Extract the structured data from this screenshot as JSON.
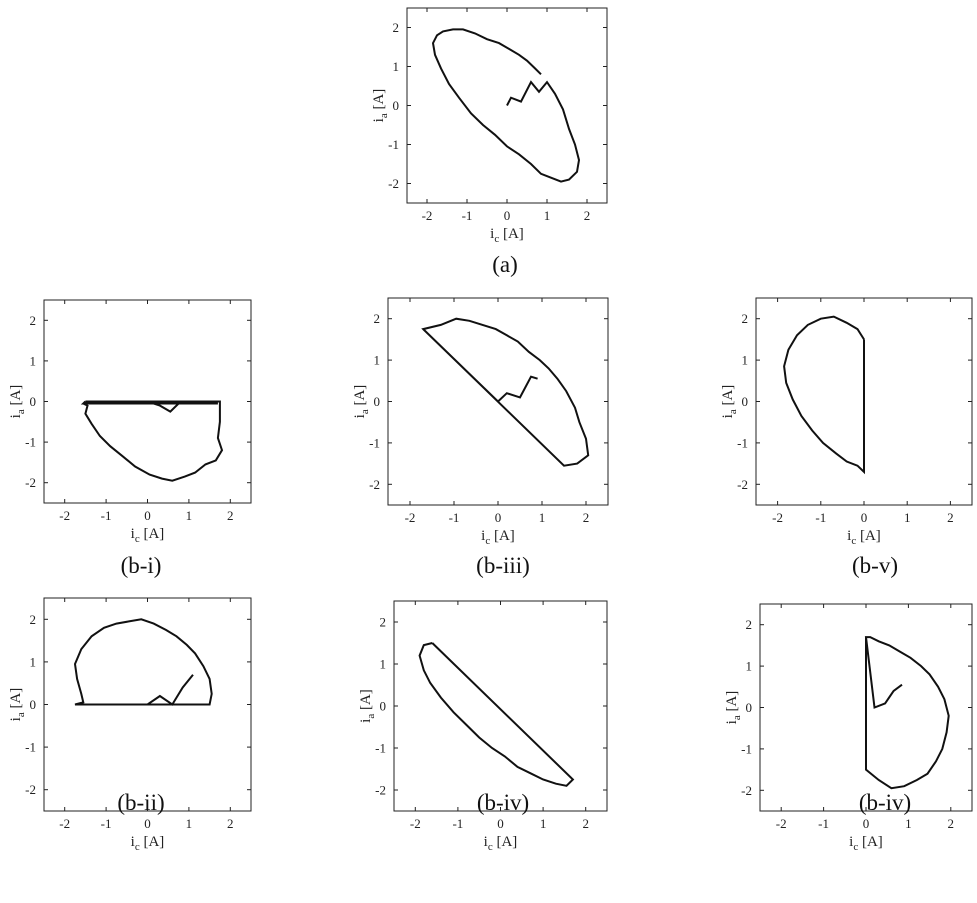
{
  "figure": {
    "chart_data": [
      {
        "type": "line",
        "caption": "(a)",
        "xlabel": "i",
        "xlabel_sub": "c",
        "xlabel_unit": "[A]",
        "ylabel": "i",
        "ylabel_sub": "a",
        "ylabel_unit": "[A]",
        "xlim": [
          -2.5,
          2.5
        ],
        "ylim": [
          -2.5,
          2.5
        ],
        "xticks": [
          "-2",
          "-1",
          "0",
          "1",
          "2"
        ],
        "yticks": [
          "-2",
          "-1",
          "0",
          "1",
          "2"
        ],
        "series": [
          {
            "color": "#111111",
            "x": [
              0.0,
              0.1,
              0.35,
              0.6,
              0.8,
              1.0,
              1.2,
              1.4,
              1.55,
              1.7,
              1.8,
              1.75,
              1.55,
              1.35,
              1.1,
              0.85,
              0.6,
              0.3,
              0.0,
              -0.3,
              -0.6,
              -0.9,
              -1.2,
              -1.45,
              -1.65,
              -1.8,
              -1.85,
              -1.75,
              -1.6,
              -1.35,
              -1.1,
              -0.8,
              -0.5,
              -0.2,
              0.05,
              0.3,
              0.5,
              0.7,
              0.85
            ],
            "y": [
              0.0,
              0.2,
              0.1,
              0.6,
              0.35,
              0.6,
              0.3,
              -0.1,
              -0.6,
              -1.0,
              -1.4,
              -1.7,
              -1.9,
              -1.95,
              -1.85,
              -1.75,
              -1.5,
              -1.25,
              -1.05,
              -0.75,
              -0.5,
              -0.2,
              0.2,
              0.55,
              0.95,
              1.3,
              1.6,
              1.8,
              1.9,
              1.95,
              1.95,
              1.85,
              1.7,
              1.6,
              1.45,
              1.3,
              1.15,
              0.95,
              0.8
            ]
          }
        ]
      },
      {
        "type": "line",
        "caption": "(b-i)",
        "xlabel": "i",
        "xlabel_sub": "c",
        "xlabel_unit": "[A]",
        "ylabel": "i",
        "ylabel_sub": "a",
        "ylabel_unit": "[A]",
        "xlim": [
          -2.5,
          2.5
        ],
        "ylim": [
          -2.5,
          2.5
        ],
        "xticks": [
          "-2",
          "-1",
          "0",
          "1",
          "2"
        ],
        "yticks": [
          "-2",
          "-1",
          "0",
          "1",
          "2"
        ],
        "series": [
          {
            "color": "#111111",
            "x": [
              -1.5,
              1.75,
              1.75,
              1.7,
              1.8,
              1.65,
              1.4,
              1.15,
              0.9,
              0.6,
              0.35,
              0.05,
              -0.3,
              -0.6,
              -0.9,
              -1.15,
              -1.35,
              -1.5,
              -1.45,
              -1.55,
              -1.5,
              -1.55,
              1.7,
              1.6,
              1.3,
              1.0,
              0.75,
              0.55,
              0.3,
              0.0
            ],
            "y": [
              0.0,
              0.0,
              -0.5,
              -0.9,
              -1.2,
              -1.45,
              -1.55,
              -1.75,
              -1.85,
              -1.95,
              -1.9,
              -1.8,
              -1.6,
              -1.35,
              -1.1,
              -0.85,
              -0.55,
              -0.3,
              -0.1,
              -0.05,
              0.0,
              -0.05,
              -0.05,
              -0.05,
              -0.05,
              -0.05,
              -0.05,
              -0.25,
              -0.1,
              0.0
            ]
          }
        ]
      },
      {
        "type": "line",
        "caption": "(b-iii)",
        "xlabel": "i",
        "xlabel_sub": "c",
        "xlabel_unit": "[A]",
        "ylabel": "i",
        "ylabel_sub": "a",
        "ylabel_unit": "[A]",
        "xlim": [
          -2.5,
          2.5
        ],
        "ylim": [
          -2.5,
          2.5
        ],
        "xticks": [
          "-2",
          "-1",
          "0",
          "1",
          "2"
        ],
        "yticks": [
          "-2",
          "-1",
          "0",
          "1",
          "2"
        ],
        "series": [
          {
            "color": "#111111",
            "x": [
              -1.7,
              1.5,
              1.8,
              2.05,
              2.0,
              1.85,
              1.75,
              1.55,
              1.35,
              1.15,
              0.95,
              0.7,
              0.45,
              0.2,
              -0.05,
              -0.35,
              -0.65,
              -0.95,
              -1.3,
              -1.7,
              0.0,
              0.2,
              0.5,
              0.75,
              0.9
            ],
            "y": [
              1.75,
              -1.55,
              -1.5,
              -1.3,
              -0.9,
              -0.5,
              -0.15,
              0.25,
              0.55,
              0.8,
              1.0,
              1.2,
              1.45,
              1.6,
              1.75,
              1.85,
              1.95,
              2.0,
              1.85,
              1.75,
              0.0,
              0.2,
              0.1,
              0.6,
              0.55
            ]
          }
        ]
      },
      {
        "type": "line",
        "caption": "(b-v)",
        "xlabel": "i",
        "xlabel_sub": "c",
        "xlabel_unit": "[A]",
        "ylabel": "i",
        "ylabel_sub": "a",
        "ylabel_unit": "[A]",
        "xlim": [
          -2.5,
          2.5
        ],
        "ylim": [
          -2.5,
          2.5
        ],
        "xticks": [
          "-2",
          "-1",
          "0",
          "1",
          "2"
        ],
        "yticks": [
          "-2",
          "-1",
          "0",
          "1",
          "2"
        ],
        "series": [
          {
            "color": "#111111",
            "x": [
              0.0,
              0.0,
              -0.15,
              -0.4,
              -0.65,
              -0.95,
              -1.2,
              -1.45,
              -1.65,
              -1.8,
              -1.85,
              -1.75,
              -1.55,
              -1.3,
              -1.0,
              -0.7,
              -0.4,
              -0.15,
              0.0
            ],
            "y": [
              1.5,
              -1.7,
              -1.55,
              -1.45,
              -1.25,
              -1.0,
              -0.7,
              -0.35,
              0.05,
              0.45,
              0.85,
              1.25,
              1.6,
              1.85,
              2.0,
              2.05,
              1.9,
              1.75,
              1.5
            ]
          }
        ]
      },
      {
        "type": "line",
        "caption": "(b-ii)",
        "xlabel": "i",
        "xlabel_sub": "c",
        "xlabel_unit": "[A]",
        "ylabel": "i",
        "ylabel_sub": "a",
        "ylabel_unit": "[A]",
        "xlim": [
          -2.5,
          2.5
        ],
        "ylim": [
          -2.5,
          2.5
        ],
        "xticks": [
          "-2",
          "-1",
          "0",
          "1",
          "2"
        ],
        "yticks": [
          "-2",
          "-1",
          "0",
          "1",
          "2"
        ],
        "series": [
          {
            "color": "#111111",
            "x": [
              -1.75,
              1.5,
              1.55,
              1.5,
              1.35,
              1.15,
              0.95,
              0.7,
              0.45,
              0.15,
              -0.15,
              -0.45,
              -0.75,
              -1.05,
              -1.35,
              -1.6,
              -1.75,
              -1.7,
              -1.6,
              -1.55,
              -1.75,
              0.0,
              0.3,
              0.6,
              0.85,
              1.1
            ],
            "y": [
              0.0,
              0.0,
              0.25,
              0.6,
              0.9,
              1.2,
              1.4,
              1.6,
              1.75,
              1.9,
              2.0,
              1.95,
              1.9,
              1.8,
              1.6,
              1.3,
              0.95,
              0.6,
              0.25,
              0.05,
              0.0,
              0.0,
              0.2,
              0.0,
              0.4,
              0.7
            ]
          }
        ]
      },
      {
        "type": "line",
        "caption": "(b-iv)",
        "xlabel": "i",
        "xlabel_sub": "c",
        "xlabel_unit": "[A]",
        "ylabel": "i",
        "ylabel_sub": "a",
        "ylabel_unit": "[A]",
        "xlim": [
          -2.5,
          2.5
        ],
        "ylim": [
          -2.5,
          2.5
        ],
        "xticks": [
          "-2",
          "-1",
          "0",
          "1",
          "2"
        ],
        "yticks": [
          "-2",
          "-1",
          "0",
          "1",
          "2"
        ],
        "series": [
          {
            "color": "#111111",
            "x": [
              -1.6,
              1.7,
              1.55,
              1.3,
              1.0,
              0.7,
              0.4,
              0.1,
              -0.2,
              -0.5,
              -0.8,
              -1.1,
              -1.4,
              -1.65,
              -1.8,
              -1.9,
              -1.8,
              -1.6
            ],
            "y": [
              1.5,
              -1.75,
              -1.9,
              -1.85,
              -1.75,
              -1.6,
              -1.45,
              -1.2,
              -1.0,
              -0.75,
              -0.45,
              -0.15,
              0.2,
              0.55,
              0.85,
              1.2,
              1.45,
              1.5
            ]
          }
        ]
      },
      {
        "type": "line",
        "caption": "(b-iv)",
        "xlabel": "i",
        "xlabel_sub": "c",
        "xlabel_unit": "[A]",
        "ylabel": "i",
        "ylabel_sub": "a",
        "ylabel_unit": "[A]",
        "xlim": [
          -2.5,
          2.5
        ],
        "ylim": [
          -2.5,
          2.5
        ],
        "xticks": [
          "-2",
          "-1",
          "0",
          "1",
          "2"
        ],
        "yticks": [
          "-2",
          "-1",
          "0",
          "1",
          "2"
        ],
        "series": [
          {
            "color": "#111111",
            "x": [
              0.0,
              0.0,
              0.3,
              0.6,
              0.9,
              1.2,
              1.45,
              1.65,
              1.8,
              1.9,
              1.95,
              1.85,
              1.7,
              1.5,
              1.3,
              1.05,
              0.8,
              0.55,
              0.3,
              0.1,
              0.0,
              0.2,
              0.45,
              0.65,
              0.85
            ],
            "y": [
              1.7,
              -1.5,
              -1.75,
              -1.95,
              -1.9,
              -1.75,
              -1.6,
              -1.3,
              -1.0,
              -0.6,
              -0.2,
              0.2,
              0.5,
              0.8,
              1.0,
              1.2,
              1.35,
              1.5,
              1.6,
              1.7,
              1.7,
              0.0,
              0.1,
              0.4,
              0.55
            ]
          }
        ]
      }
    ]
  }
}
